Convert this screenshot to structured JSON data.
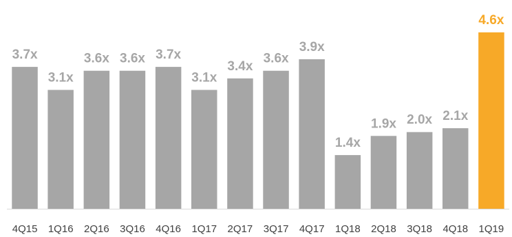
{
  "chart_data": {
    "type": "bar",
    "title": "",
    "xlabel": "",
    "ylabel": "",
    "categories": [
      "4Q15",
      "1Q16",
      "2Q16",
      "3Q16",
      "4Q16",
      "1Q17",
      "2Q17",
      "3Q17",
      "4Q17",
      "1Q18",
      "2Q18",
      "3Q18",
      "4Q18",
      "1Q19"
    ],
    "values": [
      3.7,
      3.1,
      3.6,
      3.6,
      3.7,
      3.1,
      3.4,
      3.6,
      3.9,
      1.4,
      1.9,
      2.0,
      2.1,
      4.6
    ],
    "value_labels": [
      "3.7x",
      "3.1x",
      "3.6x",
      "3.6x",
      "3.7x",
      "3.1x",
      "3.4x",
      "3.6x",
      "3.9x",
      "1.4x",
      "1.9x",
      "2.0x",
      "2.1x",
      "4.6x"
    ],
    "ylim": [
      0,
      4.6
    ],
    "grid": false,
    "legend": "none",
    "highlight_index": 13,
    "colors": {
      "bar": "#a6a6a6",
      "highlight": "#f7a928",
      "value_label": "#a6a6a6",
      "highlight_label": "#f7a928",
      "tick_label": "#404040",
      "axis": "#d9d9d9"
    }
  }
}
